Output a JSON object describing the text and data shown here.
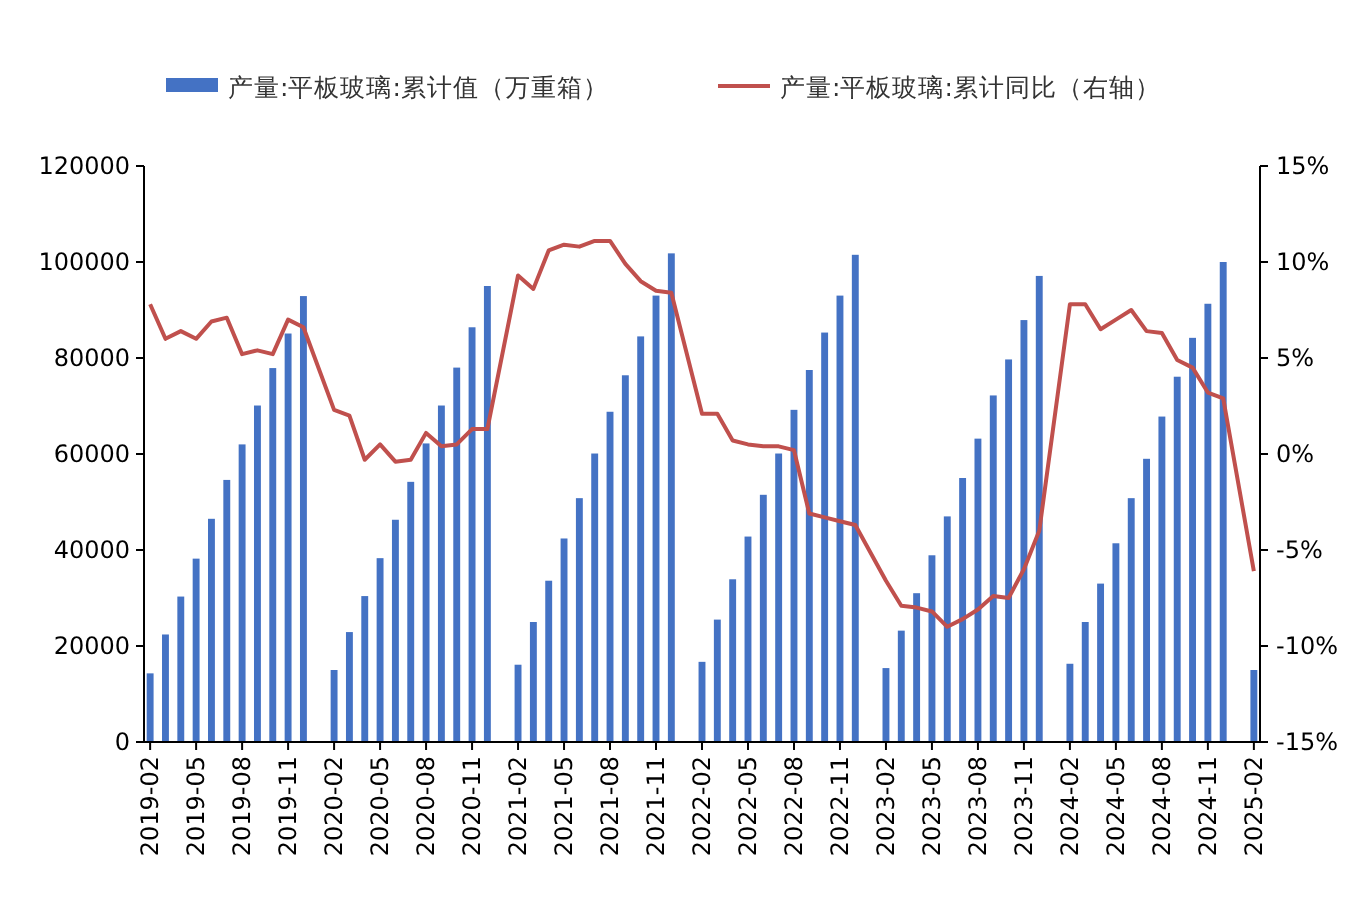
{
  "chart_data": {
    "type": "bar",
    "legend": "top",
    "grid": false,
    "xlim": [
      "2019-02",
      "2025-02"
    ],
    "xticks": [
      "2019-02",
      "2019-05",
      "2019-08",
      "2019-11",
      "2020-02",
      "2020-05",
      "2020-08",
      "2020-11",
      "2021-02",
      "2021-05",
      "2021-08",
      "2021-11",
      "2022-02",
      "2022-05",
      "2022-08",
      "2022-11",
      "2023-02",
      "2023-05",
      "2023-08",
      "2023-11",
      "2024-02",
      "2024-05",
      "2024-08",
      "2024-11",
      "2025-02"
    ],
    "ylim": [
      0,
      120000
    ],
    "yticks": [
      0,
      20000,
      40000,
      60000,
      80000,
      100000,
      120000
    ],
    "y2lim": [
      -15,
      15
    ],
    "y2ticks": [
      {
        "value": -15,
        "label": "-15%"
      },
      {
        "value": -10,
        "label": "-10%"
      },
      {
        "value": -5,
        "label": "-5%"
      },
      {
        "value": 0,
        "label": "0%"
      },
      {
        "value": 5,
        "label": "5%"
      },
      {
        "value": 10,
        "label": "10%"
      },
      {
        "value": 15,
        "label": "15%"
      }
    ],
    "x": [
      "2019-02",
      "2019-03",
      "2019-04",
      "2019-05",
      "2019-06",
      "2019-07",
      "2019-08",
      "2019-09",
      "2019-10",
      "2019-11",
      "2019-12",
      "2020-02",
      "2020-03",
      "2020-04",
      "2020-05",
      "2020-06",
      "2020-07",
      "2020-08",
      "2020-09",
      "2020-10",
      "2020-11",
      "2020-12",
      "2021-02",
      "2021-03",
      "2021-04",
      "2021-05",
      "2021-06",
      "2021-07",
      "2021-08",
      "2021-09",
      "2021-10",
      "2021-11",
      "2021-12",
      "2022-02",
      "2022-03",
      "2022-04",
      "2022-05",
      "2022-06",
      "2022-07",
      "2022-08",
      "2022-09",
      "2022-10",
      "2022-11",
      "2022-12",
      "2023-02",
      "2023-03",
      "2023-04",
      "2023-05",
      "2023-06",
      "2023-07",
      "2023-08",
      "2023-09",
      "2023-10",
      "2023-11",
      "2023-12",
      "2024-02",
      "2024-03",
      "2024-04",
      "2024-05",
      "2024-06",
      "2024-07",
      "2024-08",
      "2024-09",
      "2024-10",
      "2024-11",
      "2024-12",
      "2025-02"
    ],
    "series": [
      {
        "name": "产量:平板玻璃:累计值（万重箱）",
        "color": "#4472c4",
        "values": [
          14300,
          22400,
          30300,
          38200,
          46500,
          54600,
          62000,
          70100,
          77900,
          85100,
          92900,
          15000,
          22900,
          30400,
          38300,
          46300,
          54200,
          62200,
          70100,
          78000,
          86400,
          95000,
          16100,
          25000,
          33600,
          42400,
          50800,
          60100,
          68800,
          76400,
          84500,
          93000,
          101800,
          16700,
          25500,
          33900,
          42800,
          51500,
          60100,
          69200,
          77500,
          85300,
          93000,
          101500,
          15400,
          23200,
          31000,
          38900,
          47000,
          55000,
          63200,
          72200,
          79700,
          87900,
          97100,
          16300,
          25000,
          33000,
          41400,
          50800,
          59000,
          67800,
          76100,
          84200,
          91300,
          100000,
          15000
        ]
      },
      {
        "name": "产量:平板玻璃:累计同比（右轴）",
        "type": "line",
        "axis": "y2",
        "color": "#c0504d",
        "values": [
          7.8,
          6.0,
          6.4,
          6.0,
          6.9,
          7.1,
          5.2,
          5.4,
          5.2,
          7.0,
          6.6,
          2.3,
          2.0,
          -0.3,
          0.5,
          -0.4,
          -0.3,
          1.1,
          0.4,
          0.5,
          1.3,
          1.3,
          9.3,
          8.6,
          10.6,
          10.9,
          10.8,
          11.1,
          11.1,
          9.9,
          9.0,
          8.5,
          8.4,
          2.1,
          2.1,
          0.7,
          0.5,
          0.4,
          0.4,
          0.2,
          -3.1,
          -3.3,
          -3.5,
          -3.7,
          -6.6,
          -7.9,
          -8.0,
          -8.2,
          -9.0,
          -8.6,
          -8.1,
          -7.4,
          -7.5,
          -6.0,
          -4.0,
          7.8,
          7.8,
          6.5,
          7.0,
          7.5,
          6.4,
          6.3,
          4.9,
          4.5,
          3.2,
          2.9,
          -6.1
        ]
      }
    ]
  }
}
